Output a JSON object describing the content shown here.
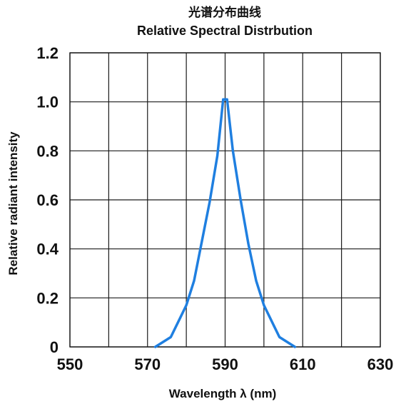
{
  "chart_data": {
    "type": "line",
    "title": "光谱分布曲线",
    "subtitle": "Relative Spectral Distrbution",
    "xlabel": "Wavelength  λ (nm)",
    "ylabel": "Relative radiant intensity",
    "xlim": [
      550,
      630
    ],
    "ylim": [
      0,
      1.2
    ],
    "x_ticks": [
      550,
      570,
      590,
      610,
      630
    ],
    "y_ticks": [
      0,
      0.2,
      0.4,
      0.6,
      0.8,
      1.0,
      1.2
    ],
    "x_tick_labels": [
      "550",
      "570",
      "590",
      "610",
      "630"
    ],
    "y_tick_labels": [
      "0",
      "0.2",
      "0.4",
      "0.6",
      "0.8",
      "1.0",
      "1.2"
    ],
    "grid": true,
    "series": [
      {
        "color": "#1f7fe0",
        "x": [
          572,
          576,
          580,
          582,
          584,
          586,
          588,
          589.5,
          590.5,
          592,
          594,
          596,
          598,
          600,
          604,
          608
        ],
        "y": [
          0.0,
          0.04,
          0.17,
          0.27,
          0.43,
          0.59,
          0.78,
          1.01,
          1.01,
          0.8,
          0.6,
          0.42,
          0.27,
          0.17,
          0.04,
          0.0
        ]
      }
    ]
  },
  "colors": {
    "series": "#1f7fe0",
    "grid": "#1a1a1a",
    "text": "#111111"
  }
}
